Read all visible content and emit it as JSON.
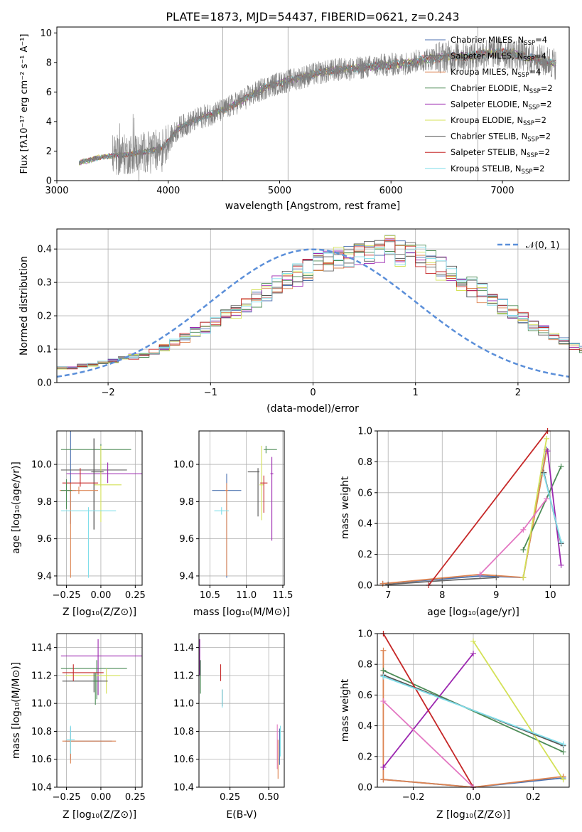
{
  "figure_title": "PLATE=1873, MJD=54437, FIBERID=0621, z=0.243",
  "series_names": [
    "Chabrier MILES, N_SSP=4",
    "Salpeter MILES, N_SSP=4",
    "Kroupa MILES, N_SSP=4",
    "Chabrier ELODIE, N_SSP=2",
    "Salpeter ELODIE, N_SSP=2",
    "Kroupa ELODIE, N_SSP=2",
    "Chabrier STELIB, N_SSP=2",
    "Salpeter STELIB, N_SSP=2",
    "Kroupa STELIB, N_SSP=2"
  ],
  "series_labels": {
    "s0": {
      "pre": "Chabrier MILES, N",
      "sub": "SSP",
      "post": "=4"
    },
    "s1": {
      "pre": "Salpeter MILES, N",
      "sub": "SSP",
      "post": "=4"
    },
    "s2": {
      "pre": "Kroupa MILES, N",
      "sub": "SSP",
      "post": "=4"
    },
    "s3": {
      "pre": "Chabrier ELODIE, N",
      "sub": "SSP",
      "post": "=2"
    },
    "s4": {
      "pre": "Salpeter ELODIE, N",
      "sub": "SSP",
      "post": "=2"
    },
    "s5": {
      "pre": "Kroupa ELODIE, N",
      "sub": "SSP",
      "post": "=2"
    },
    "s6": {
      "pre": "Chabrier STELIB, N",
      "sub": "SSP",
      "post": "=2"
    },
    "s7": {
      "pre": "Salpeter STELIB, N",
      "sub": "SSP",
      "post": "=2"
    },
    "s8": {
      "pre": "Kroupa STELIB, N",
      "sub": "SSP",
      "post": "=2"
    }
  },
  "series_colors": [
    "#4c72b0",
    "#666666",
    "#dd8452",
    "#4d8c57",
    "#9c27b0",
    "#d4e157",
    "#555555",
    "#c62828",
    "#80deea"
  ],
  "spectrum_color": "#808080",
  "labels": {
    "spec_xlabel": "wavelength [Angstrom, rest frame]",
    "spec_ylabel": "Flux [fλ10⁻¹⁷ erg cm⁻² s⁻¹ A⁻¹]",
    "res_xlabel": "(data-model)/error",
    "res_ylabel": "Normed distribution",
    "res_legend": "𝒩(0, 1)",
    "age_label": "age  [log₁₀(age/yr)]",
    "age_label_r": "age  [log₁₀(age/yr)]",
    "z_label": "Z [log₁₀(Z/Z⊙)]",
    "z_label_2": "Z [log₁₀(Z/Z⊙)]",
    "z_label_r": "Z [log₁₀(Z/Z⊙)]",
    "mass_xlabel": "mass [log₁₀(M/M⊙)]",
    "mass_ylabel": "mass [log₁₀(M/M⊙)]",
    "ebv_label": "E(B-V)",
    "mw_label": "mass weight",
    "mw_label_2": "mass weight"
  },
  "chart_data": [
    {
      "id": "spectrum",
      "type": "line",
      "title": "PLATE=1873, MJD=54437, FIBERID=0621, z=0.243",
      "xlim": [
        3000,
        7600
      ],
      "ylim": [
        0,
        10.4
      ],
      "xticks": [
        3000,
        4000,
        5000,
        6000,
        7000
      ],
      "yticks": [
        0,
        2,
        4,
        6,
        8,
        10
      ],
      "continuum": {
        "x": [
          3200,
          3400,
          3600,
          3800,
          3950,
          4100,
          4300,
          4500,
          4700,
          4900,
          5100,
          5300,
          5500,
          5700,
          5900,
          6100,
          6300,
          6500,
          6700,
          6900,
          7100,
          7300,
          7500
        ],
        "y": [
          1.2,
          1.6,
          1.75,
          1.95,
          2.2,
          3.6,
          4.3,
          4.8,
          5.6,
          6.4,
          6.8,
          7.2,
          7.5,
          7.6,
          7.8,
          7.9,
          8.2,
          8.4,
          8.4,
          8.7,
          8.6,
          8.2,
          7.9
        ]
      }
    },
    {
      "id": "residuals",
      "type": "line",
      "xlim": [
        -2.5,
        2.5
      ],
      "ylim": [
        0,
        0.46
      ],
      "xticks": [
        -2,
        -1,
        0,
        1,
        2
      ],
      "yticks": [
        0.0,
        0.1,
        0.2,
        0.3,
        0.4
      ],
      "bin_width": 0.1,
      "envelope": [
        0.043,
        0.046,
        0.05,
        0.053,
        0.058,
        0.064,
        0.07,
        0.077,
        0.084,
        0.092,
        0.104,
        0.119,
        0.134,
        0.149,
        0.164,
        0.18,
        0.198,
        0.215,
        0.234,
        0.253,
        0.271,
        0.289,
        0.306,
        0.322,
        0.338,
        0.352,
        0.365,
        0.376,
        0.386,
        0.393,
        0.398,
        0.399,
        0.397,
        0.391,
        0.382,
        0.371,
        0.357,
        0.342,
        0.325,
        0.306,
        0.287,
        0.268,
        0.248,
        0.228,
        0.209,
        0.19,
        0.172,
        0.155,
        0.139,
        0.124,
        0.11,
        0.098,
        0.089,
        0.081,
        0.074,
        0.068,
        0.062,
        0.056,
        0.05,
        0.045
      ],
      "normal": {
        "mu": 0,
        "sigma": 1,
        "name": "𝒩(0, 1)"
      }
    },
    {
      "id": "age_vs_z",
      "type": "scatter",
      "xlim": [
        -0.32,
        0.3
      ],
      "ylim": [
        9.35,
        10.18
      ],
      "xticks": [
        -0.25,
        0.0,
        0.25
      ],
      "yticks": [
        9.4,
        9.6,
        9.8,
        10.0
      ],
      "points": [
        {
          "s": 0,
          "x": -0.22,
          "y": 9.86,
          "xerr": 0.04,
          "yerr": [
            0.18,
            0.46
          ]
        },
        {
          "s": 1,
          "x": -0.05,
          "y": 9.97,
          "xerr": 0.24,
          "yerr": [
            0.32,
            0.17
          ]
        },
        {
          "s": 2,
          "x": -0.22,
          "y": 9.86,
          "xerr": 0.02,
          "yerr": [
            0.47,
            0.04
          ]
        },
        {
          "s": 3,
          "x": 0.0,
          "y": 10.08,
          "xerr": [
            0.29,
            0.22
          ],
          "yerr": [
            0.2,
            0.03
          ]
        },
        {
          "s": 4,
          "x": 0.05,
          "y": 9.95,
          "xerr": [
            0.3,
            0.25
          ],
          "yerr": [
            0.05,
            0.06
          ]
        },
        {
          "s": 5,
          "x": 0.0,
          "y": 9.89,
          "xerr": [
            0.05,
            0.15
          ],
          "yerr": [
            0.2,
            0.21
          ]
        },
        {
          "s": 6,
          "x": -0.05,
          "y": 9.96,
          "xerr": [
            0.02,
            0.07
          ],
          "yerr": [
            0.31,
            0.18
          ]
        },
        {
          "s": 7,
          "x": -0.15,
          "y": 9.9,
          "xerr": 0.13,
          "yerr": [
            0.02,
            0.08
          ]
        },
        {
          "s": 8,
          "x": -0.09,
          "y": 9.75,
          "xerr": 0.2,
          "yerr": [
            0.36,
            0.02
          ]
        },
        {
          "s": 2,
          "x": -0.16,
          "y": 9.86,
          "xerr": 0.14,
          "yerr": 0.02
        },
        {
          "s": 3,
          "x": -0.25,
          "y": 9.86,
          "xerr": 0.04,
          "yerr": [
            0.1,
            0.06
          ]
        }
      ]
    },
    {
      "id": "age_vs_mass",
      "type": "scatter",
      "xlim": [
        10.35,
        11.52
      ],
      "ylim": [
        9.35,
        10.18
      ],
      "xticks": [
        10.5,
        11.0,
        11.5
      ],
      "yticks": [
        9.4,
        9.6,
        9.8,
        10.0
      ],
      "points": [
        {
          "s": 0,
          "x": 10.73,
          "y": 9.86,
          "xerr": 0.2,
          "yerr": [
            0.47,
            0.09
          ]
        },
        {
          "s": 2,
          "x": 10.73,
          "y": 9.86,
          "xerr": 0.02,
          "yerr": [
            0.46,
            0.04
          ]
        },
        {
          "s": 8,
          "x": 10.66,
          "y": 9.75,
          "xerr": 0.1,
          "yerr": 0.02
        },
        {
          "s": 3,
          "x": 11.27,
          "y": 10.08,
          "xerr": [
            0.03,
            0.15
          ],
          "yerr": 0.02
        },
        {
          "s": 4,
          "x": 11.35,
          "y": 9.95,
          "xerr": 0.02,
          "yerr": [
            0.36,
            0.09
          ]
        },
        {
          "s": 5,
          "x": 11.21,
          "y": 9.89,
          "xerr": 0.03,
          "yerr": [
            0.19,
            0.21
          ]
        },
        {
          "s": 6,
          "x": 11.16,
          "y": 9.96,
          "xerr": [
            0.14,
            0.02
          ],
          "yerr": [
            0.24,
            0.02
          ]
        },
        {
          "s": 7,
          "x": 11.24,
          "y": 9.9,
          "xerr": 0.05,
          "yerr": [
            0.16,
            0.04
          ]
        }
      ]
    },
    {
      "id": "mw_vs_age",
      "type": "line",
      "xlim": [
        6.8,
        10.35
      ],
      "ylim": [
        0,
        1.0
      ],
      "xticks": [
        7,
        8,
        9,
        10
      ],
      "yticks": [
        0.0,
        0.2,
        0.4,
        0.6,
        0.8,
        1.0
      ],
      "series": [
        {
          "s": 0,
          "x": [
            6.9,
            8.7,
            9.5,
            9.93
          ],
          "y": [
            0.01,
            0.06,
            0.05,
            0.88
          ]
        },
        {
          "s": 2,
          "x": [
            6.9,
            8.7,
            9.5,
            9.93
          ],
          "y": [
            0.01,
            0.07,
            0.05,
            0.87
          ]
        },
        {
          "s": 1,
          "x": [
            7.0,
            8.0,
            9.0
          ],
          "y": [
            0.005,
            0.03,
            0.05
          ]
        },
        {
          "s": 3,
          "x": [
            9.5,
            10.2
          ],
          "y": [
            0.23,
            0.77
          ]
        },
        {
          "s": 4,
          "x": [
            9.95,
            10.2
          ],
          "y": [
            0.87,
            0.13
          ]
        },
        {
          "s": 5,
          "x": [
            9.5,
            9.93
          ],
          "y": [
            0.05,
            0.95
          ]
        },
        {
          "s": 6,
          "x": [
            9.88,
            10.2
          ],
          "y": [
            0.73,
            0.27
          ]
        },
        {
          "s": 7,
          "x": [
            7.75,
            9.95
          ],
          "y": [
            0.0,
            1.0
          ]
        },
        {
          "s": 8,
          "x": [
            9.88,
            10.2
          ],
          "y": [
            0.72,
            0.28
          ]
        },
        {
          "s": 9,
          "x": [
            8.7,
            9.5,
            9.93
          ],
          "y": [
            0.07,
            0.36,
            0.56
          ]
        }
      ]
    },
    {
      "id": "mass_vs_z",
      "type": "scatter",
      "xlim": [
        -0.32,
        0.3
      ],
      "ylim": [
        10.4,
        11.5
      ],
      "xticks": [
        -0.25,
        0.0,
        0.25
      ],
      "yticks": [
        10.4,
        10.6,
        10.8,
        11.0,
        11.2,
        11.4
      ],
      "points": [
        {
          "s": 0,
          "x": -0.22,
          "y": 10.73,
          "xerr": [
            0.04,
            0.3
          ],
          "yerr": [
            0.13,
            0.1
          ]
        },
        {
          "s": 2,
          "x": -0.22,
          "y": 10.73,
          "xerr": [
            0.06,
            0.33
          ],
          "yerr": [
            0.16,
            0.04
          ]
        },
        {
          "s": 8,
          "x": -0.22,
          "y": 10.74,
          "xerr": 0.03,
          "yerr": [
            0.1,
            0.1
          ]
        },
        {
          "s": 3,
          "x": -0.03,
          "y": 11.25,
          "xerr": [
            0.26,
            0.22
          ],
          "yerr": [
            0.22,
            0.06
          ]
        },
        {
          "s": 4,
          "x": -0.02,
          "y": 11.34,
          "xerr": [
            0.27,
            0.33
          ],
          "yerr": [
            0.28,
            0.12
          ]
        },
        {
          "s": 5,
          "x": 0.04,
          "y": 11.2,
          "xerr": [
            0.3,
            0.1
          ],
          "yerr": [
            0.13,
            0.05
          ]
        },
        {
          "s": 6,
          "x": -0.05,
          "y": 11.16,
          "xerr": [
            0.23,
            0.1
          ],
          "yerr": [
            0.08,
            0.06
          ]
        },
        {
          "s": 7,
          "x": -0.2,
          "y": 11.22,
          "xerr": [
            0.08,
            0.22
          ],
          "yerr": [
            0.06,
            0.06
          ]
        },
        {
          "s": 3,
          "x": -0.04,
          "y": 11.16,
          "xerr": 0.02,
          "yerr": [
            0.17,
            0.06
          ]
        }
      ]
    },
    {
      "id": "mass_vs_ebv",
      "type": "scatter",
      "xlim": [
        0.05,
        0.6
      ],
      "ylim": [
        10.4,
        11.5
      ],
      "xticks": [
        0.25,
        0.5
      ],
      "yticks": [
        10.4,
        10.6,
        10.8,
        11.0,
        11.2,
        11.4
      ],
      "points": [
        {
          "s": 4,
          "x": 0.055,
          "y": 11.34,
          "xerr": 0.0,
          "yerr": [
            0.14,
            0.12
          ]
        },
        {
          "s": 3,
          "x": 0.06,
          "y": 11.25,
          "xerr": 0.0,
          "yerr": [
            0.18,
            0.06
          ]
        },
        {
          "s": 7,
          "x": 0.19,
          "y": 11.22,
          "xerr": 0.0,
          "yerr": [
            0.06,
            0.06
          ]
        },
        {
          "s": 6,
          "x": 0.2,
          "y": 11.05,
          "xerr": 0.0,
          "yerr": [
            0.07,
            0.05
          ]
        },
        {
          "s": 8,
          "x": 0.2,
          "y": 11.04,
          "xerr": 0.0,
          "yerr": [
            0.07,
            0.06
          ]
        },
        {
          "s": 9,
          "x": 0.555,
          "y": 10.7,
          "xerr": 0.0,
          "yerr": [
            0.17,
            0.15
          ]
        },
        {
          "s": 2,
          "x": 0.56,
          "y": 10.66,
          "xerr": 0.0,
          "yerr": [
            0.2,
            0.08
          ]
        },
        {
          "s": 0,
          "x": 0.57,
          "y": 10.7,
          "xerr": 0.0,
          "yerr": [
            0.14,
            0.12
          ]
        },
        {
          "s": 8,
          "x": 0.575,
          "y": 10.72,
          "xerr": 0.0,
          "yerr": [
            0.1,
            0.12
          ]
        }
      ]
    },
    {
      "id": "mw_vs_z",
      "type": "line",
      "xlim": [
        -0.32,
        0.32
      ],
      "ylim": [
        0,
        1.0
      ],
      "xticks": [
        -0.2,
        0.0,
        0.2
      ],
      "yticks": [
        0.0,
        0.2,
        0.4,
        0.6,
        0.8,
        1.0
      ],
      "series": [
        {
          "s": 0,
          "x": [
            -0.3,
            0.0,
            0.3
          ],
          "y": [
            0.05,
            0.0,
            0.06
          ]
        },
        {
          "s": 2,
          "x": [
            -0.3,
            0.0,
            0.3
          ],
          "y": [
            0.05,
            0.0,
            0.07
          ]
        },
        {
          "s": 2,
          "x": [
            -0.3,
            -0.3
          ],
          "y": [
            0.05,
            0.89
          ]
        },
        {
          "s": 3,
          "x": [
            -0.3,
            0.3
          ],
          "y": [
            0.76,
            0.23
          ]
        },
        {
          "s": 4,
          "x": [
            -0.3,
            0.0
          ],
          "y": [
            0.13,
            0.87
          ]
        },
        {
          "s": 5,
          "x": [
            0.0,
            0.3
          ],
          "y": [
            0.95,
            0.05
          ]
        },
        {
          "s": 6,
          "x": [
            -0.3,
            0.3
          ],
          "y": [
            0.73,
            0.27
          ]
        },
        {
          "s": 7,
          "x": [
            -0.3,
            0.0
          ],
          "y": [
            1.0,
            0.0
          ]
        },
        {
          "s": 8,
          "x": [
            -0.3,
            0.3
          ],
          "y": [
            0.72,
            0.28
          ]
        },
        {
          "s": 9,
          "x": [
            -0.3,
            0.0
          ],
          "y": [
            0.56,
            0.0
          ]
        }
      ]
    }
  ]
}
